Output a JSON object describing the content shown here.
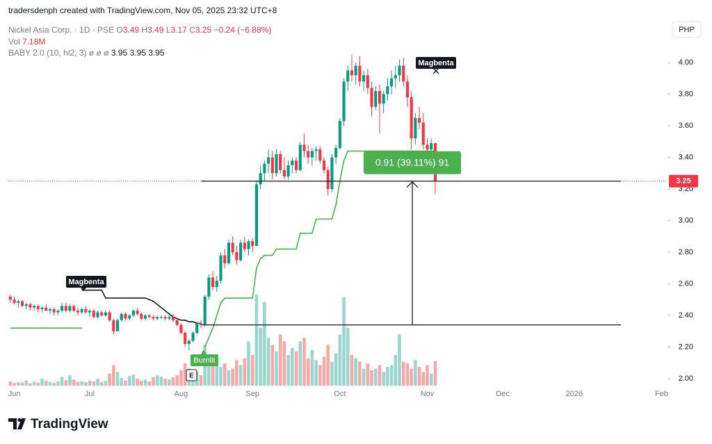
{
  "header": {
    "credit": "tradersdenph created with TradingView.com, Nov 05, 2025 23:32 UTC+8"
  },
  "legend": {
    "symbol": "Nickel Asia Corp. · 1D · PSE",
    "open_label": "O",
    "open": "3.49",
    "high_label": "H",
    "high": "3.49",
    "low_label": "L",
    "low": "3.17",
    "close_label": "C",
    "close": "3.25",
    "change": "−0.24 (−6.88%)",
    "volume_label": "Vol",
    "volume": "7.18M",
    "indicator": "BABY 2.0 (10, hl2, 3)",
    "indicator_empty": "ø ø ø",
    "indicator_values": "3.95 3.95 3.95"
  },
  "currency": "PHP",
  "footer": {
    "brand": "TradingView"
  },
  "chart_data": {
    "type": "candlestick",
    "categories": [
      null,
      "Jun",
      null,
      null,
      null,
      null,
      null,
      null,
      null,
      null,
      null,
      null,
      null,
      null,
      null,
      null,
      null,
      null,
      null,
      null,
      "Jul",
      null,
      null,
      null,
      null,
      null,
      null,
      null,
      null,
      null,
      null,
      null,
      null,
      null,
      null,
      null,
      null,
      null,
      null,
      null,
      null,
      null,
      null,
      "Aug",
      null,
      null,
      null,
      null,
      null,
      null,
      null,
      null,
      null,
      null,
      null,
      null,
      null,
      null,
      null,
      null,
      null,
      "Sep",
      null,
      null,
      null,
      null,
      null,
      null,
      null,
      null,
      null,
      null,
      null,
      null,
      null,
      null,
      null,
      null,
      null,
      null,
      null,
      null,
      null,
      "Oct",
      null,
      null,
      null,
      null,
      null,
      null,
      null,
      null,
      null,
      null,
      null,
      null,
      null,
      null,
      null,
      null,
      null,
      null,
      null,
      null,
      null,
      "Nov",
      null,
      null,
      null,
      null,
      null,
      null,
      null,
      null,
      null,
      null,
      null,
      null,
      null,
      null,
      null,
      null,
      null,
      null,
      "Dec",
      null,
      null,
      null,
      null,
      null,
      null,
      null,
      null,
      null,
      null,
      null,
      null,
      null,
      null,
      null,
      null,
      null,
      "2026",
      null,
      null,
      null,
      null,
      null,
      null,
      null,
      null,
      null,
      null,
      null,
      null,
      null,
      null,
      null,
      null,
      null,
      null,
      null,
      null,
      null,
      "Feb",
      null
    ],
    "ohlc": [
      [
        2.52,
        2.53,
        2.48,
        2.5
      ],
      [
        2.5,
        2.52,
        2.47,
        2.48
      ],
      [
        2.48,
        2.5,
        2.45,
        2.49
      ],
      [
        2.49,
        2.5,
        2.45,
        2.46
      ],
      [
        2.46,
        2.48,
        2.44,
        2.47
      ],
      [
        2.47,
        2.48,
        2.43,
        2.45
      ],
      [
        2.45,
        2.47,
        2.43,
        2.46
      ],
      [
        2.46,
        2.47,
        2.42,
        2.44
      ],
      [
        2.44,
        2.46,
        2.42,
        2.45
      ],
      [
        2.45,
        2.47,
        2.43,
        2.43
      ],
      [
        2.43,
        2.45,
        2.41,
        2.44
      ],
      [
        2.44,
        2.45,
        2.4,
        2.42
      ],
      [
        2.42,
        2.44,
        2.4,
        2.43
      ],
      [
        2.43,
        2.48,
        2.42,
        2.46
      ],
      [
        2.46,
        2.48,
        2.42,
        2.43
      ],
      [
        2.43,
        2.47,
        2.42,
        2.46
      ],
      [
        2.46,
        2.47,
        2.42,
        2.43
      ],
      [
        2.43,
        2.45,
        2.4,
        2.42
      ],
      [
        2.42,
        2.45,
        2.41,
        2.44
      ],
      [
        2.44,
        2.46,
        2.41,
        2.42
      ],
      [
        2.42,
        2.44,
        2.39,
        2.43
      ],
      [
        2.43,
        2.44,
        2.38,
        2.39
      ],
      [
        2.39,
        2.43,
        2.38,
        2.42
      ],
      [
        2.42,
        2.43,
        2.39,
        2.4
      ],
      [
        2.4,
        2.43,
        2.39,
        2.42
      ],
      [
        2.42,
        2.43,
        2.36,
        2.37
      ],
      [
        2.37,
        2.38,
        2.28,
        2.3
      ],
      [
        2.3,
        2.38,
        2.3,
        2.37
      ],
      [
        2.37,
        2.42,
        2.36,
        2.41
      ],
      [
        2.41,
        2.42,
        2.37,
        2.38
      ],
      [
        2.38,
        2.41,
        2.37,
        2.4
      ],
      [
        2.4,
        2.44,
        2.39,
        2.43
      ],
      [
        2.43,
        2.45,
        2.4,
        2.41
      ],
      [
        2.41,
        2.42,
        2.37,
        2.38
      ],
      [
        2.38,
        2.41,
        2.37,
        2.4
      ],
      [
        2.4,
        2.41,
        2.38,
        2.39
      ],
      [
        2.39,
        2.4,
        2.37,
        2.38
      ],
      [
        2.38,
        2.4,
        2.37,
        2.39
      ],
      [
        2.39,
        2.4,
        2.38,
        2.39
      ],
      [
        2.39,
        2.4,
        2.37,
        2.38
      ],
      [
        2.38,
        2.4,
        2.37,
        2.39
      ],
      [
        2.39,
        2.41,
        2.36,
        2.37
      ],
      [
        2.37,
        2.38,
        2.33,
        2.34
      ],
      [
        2.34,
        2.35,
        2.28,
        2.29
      ],
      [
        2.29,
        2.3,
        2.2,
        2.22
      ],
      [
        2.22,
        2.25,
        2.18,
        2.24
      ],
      [
        2.24,
        2.3,
        2.23,
        2.29
      ],
      [
        2.29,
        2.36,
        2.28,
        2.35
      ],
      [
        2.35,
        2.37,
        2.32,
        2.34
      ],
      [
        2.34,
        2.53,
        2.33,
        2.52
      ],
      [
        2.52,
        2.66,
        2.5,
        2.64
      ],
      [
        2.64,
        2.68,
        2.56,
        2.58
      ],
      [
        2.58,
        2.65,
        2.55,
        2.62
      ],
      [
        2.62,
        2.8,
        2.6,
        2.78
      ],
      [
        2.78,
        2.82,
        2.7,
        2.73
      ],
      [
        2.73,
        2.88,
        2.72,
        2.86
      ],
      [
        2.86,
        2.9,
        2.78,
        2.8
      ],
      [
        2.8,
        2.84,
        2.72,
        2.75
      ],
      [
        2.75,
        2.88,
        2.74,
        2.86
      ],
      [
        2.86,
        2.9,
        2.8,
        2.82
      ],
      [
        2.82,
        2.88,
        2.78,
        2.87
      ],
      [
        2.87,
        2.89,
        2.8,
        2.84
      ],
      [
        2.84,
        3.25,
        2.84,
        3.23
      ],
      [
        3.23,
        3.35,
        3.2,
        3.3
      ],
      [
        3.3,
        3.38,
        3.25,
        3.36
      ],
      [
        3.36,
        3.45,
        3.3,
        3.4
      ],
      [
        3.4,
        3.44,
        3.26,
        3.3
      ],
      [
        3.3,
        3.45,
        3.28,
        3.42
      ],
      [
        3.42,
        3.44,
        3.3,
        3.32
      ],
      [
        3.32,
        3.4,
        3.26,
        3.28
      ],
      [
        3.28,
        3.38,
        3.26,
        3.35
      ],
      [
        3.35,
        3.4,
        3.3,
        3.38
      ],
      [
        3.38,
        3.4,
        3.3,
        3.32
      ],
      [
        3.32,
        3.5,
        3.31,
        3.48
      ],
      [
        3.48,
        3.55,
        3.4,
        3.44
      ],
      [
        3.44,
        3.48,
        3.36,
        3.4
      ],
      [
        3.4,
        3.46,
        3.35,
        3.44
      ],
      [
        3.44,
        3.47,
        3.38,
        3.45
      ],
      [
        3.45,
        3.47,
        3.36,
        3.38
      ],
      [
        3.38,
        3.4,
        3.3,
        3.32
      ],
      [
        3.32,
        3.34,
        3.16,
        3.2
      ],
      [
        3.2,
        3.42,
        3.18,
        3.4
      ],
      [
        3.4,
        3.48,
        3.36,
        3.46
      ],
      [
        3.46,
        3.65,
        3.45,
        3.63
      ],
      [
        3.63,
        3.9,
        3.6,
        3.88
      ],
      [
        3.88,
        3.98,
        3.82,
        3.95
      ],
      [
        3.95,
        4.05,
        3.88,
        3.92
      ],
      [
        3.92,
        4.0,
        3.86,
        3.98
      ],
      [
        3.98,
        4.04,
        3.85,
        3.88
      ],
      [
        3.88,
        3.95,
        3.82,
        3.92
      ],
      [
        3.92,
        3.96,
        3.8,
        3.84
      ],
      [
        3.84,
        3.88,
        3.66,
        3.72
      ],
      [
        3.72,
        3.85,
        3.7,
        3.82
      ],
      [
        3.82,
        3.86,
        3.55,
        3.74
      ],
      [
        3.74,
        3.82,
        3.68,
        3.8
      ],
      [
        3.8,
        3.9,
        3.76,
        3.85
      ],
      [
        3.85,
        3.95,
        3.8,
        3.9
      ],
      [
        3.9,
        3.98,
        3.84,
        3.92
      ],
      [
        3.92,
        4.02,
        3.88,
        3.98
      ],
      [
        3.98,
        4.03,
        3.85,
        3.88
      ],
      [
        3.88,
        3.92,
        3.72,
        3.78
      ],
      [
        3.78,
        3.82,
        3.45,
        3.52
      ],
      [
        3.52,
        3.68,
        3.48,
        3.65
      ],
      [
        3.65,
        3.72,
        3.58,
        3.62
      ],
      [
        3.62,
        3.68,
        3.45,
        3.48
      ],
      [
        3.48,
        3.52,
        3.4,
        3.45
      ],
      [
        3.45,
        3.52,
        3.42,
        3.49
      ],
      [
        3.49,
        3.49,
        3.17,
        3.25
      ],
      null,
      null,
      null,
      null,
      null,
      null,
      null,
      null,
      null,
      null,
      null,
      null,
      null,
      null,
      null,
      null,
      null,
      null,
      null,
      null,
      null,
      null,
      null,
      null,
      null,
      null,
      null,
      null,
      null,
      null,
      null,
      null,
      null,
      null,
      null,
      null,
      null,
      null,
      null,
      null,
      null,
      null,
      null,
      null,
      null,
      null,
      null,
      null,
      null,
      null,
      null,
      null,
      null,
      null,
      null,
      null,
      null,
      null
    ],
    "volume": [
      1.2,
      0.8,
      1.0,
      0.9,
      1.5,
      0.7,
      1.1,
      0.9,
      2.0,
      1.4,
      1.0,
      0.8,
      1.2,
      2.5,
      1.6,
      3.0,
      1.8,
      1.1,
      1.3,
      1.0,
      1.5,
      1.2,
      2.0,
      1.0,
      1.4,
      3.5,
      6.0,
      4.0,
      2.2,
      1.5,
      2.8,
      3.2,
      2.0,
      1.4,
      1.8,
      1.2,
      2.5,
      3.0,
      2.6,
      2.0,
      1.8,
      2.4,
      3.0,
      4.5,
      6.5,
      5.0,
      3.5,
      4.0,
      3.0,
      12.0,
      8.5,
      6.0,
      7.0,
      5.5,
      6.5,
      4.5,
      5.0,
      7.5,
      6.0,
      8.0,
      13.0,
      9.0,
      26.7,
      17.0,
      24.5,
      14.0,
      12.0,
      10.0,
      15.0,
      13.0,
      9.0,
      11.0,
      10.0,
      13.0,
      14.0,
      8.0,
      10.5,
      7.5,
      6.0,
      8.5,
      12.0,
      7.0,
      9.5,
      15.0,
      26.0,
      17.0,
      9.0,
      8.0,
      7.0,
      5.0,
      6.5,
      4.5,
      5.0,
      6.0,
      4.0,
      5.5,
      6.0,
      9.0,
      15.0,
      7.0,
      6.5,
      5.0,
      7.5,
      5.5,
      4.0,
      6.0,
      3.5,
      7.18,
      null,
      null,
      null,
      null,
      null,
      null,
      null,
      null,
      null,
      null,
      null,
      null,
      null,
      null,
      null,
      null,
      null,
      null,
      null,
      null,
      null,
      null,
      null,
      null,
      null,
      null,
      null,
      null,
      null,
      null,
      null,
      null,
      null,
      null,
      null,
      null,
      null,
      null,
      null,
      null,
      null,
      null,
      null,
      null,
      null,
      null,
      null,
      null,
      null,
      null,
      null,
      null,
      null,
      null,
      null,
      null,
      null,
      null
    ],
    "up_color": "#089981",
    "down_color": "#f23645",
    "volume_up_color": "#9ad5cf",
    "volume_down_color": "#f7a9a7",
    "ylim": [
      1.956,
      4.264
    ],
    "yticks": [
      {
        "value": 2.0,
        "label": "2.00"
      },
      {
        "value": 2.2,
        "label": "2.20"
      },
      {
        "value": 2.4,
        "label": "2.40"
      },
      {
        "value": 2.6,
        "label": "2.60"
      },
      {
        "value": 2.8,
        "label": "2.80"
      },
      {
        "value": 3.0,
        "label": "3.00"
      },
      {
        "value": 3.2,
        "label": "3.20"
      },
      {
        "value": 3.4,
        "label": "3.40"
      },
      {
        "value": 3.6,
        "label": "3.60"
      },
      {
        "value": 3.8,
        "label": "3.80"
      },
      {
        "value": 4.0,
        "label": "4.00"
      }
    ],
    "y2lim": [
      0,
      107
    ],
    "last_price": {
      "value": 3.25,
      "label": "3.25"
    },
    "last_price_color": "#f23645",
    "lines": [
      {
        "color": "#4caf50",
        "values": [
          2.32,
          2.32,
          2.32,
          2.32,
          2.32,
          2.32,
          2.32,
          2.32,
          2.32,
          2.32,
          2.32,
          2.32,
          2.32,
          2.32,
          2.32,
          2.32,
          2.32,
          2.32,
          2.32,
          null,
          null,
          null,
          null,
          null,
          null,
          null,
          null,
          null,
          null,
          null,
          null,
          null,
          null,
          null,
          null,
          null,
          null,
          null,
          null,
          null,
          null,
          null,
          null,
          null,
          null,
          null,
          null,
          null,
          null,
          2.2,
          2.26,
          2.32,
          2.4,
          2.48,
          2.51,
          2.51,
          2.51,
          2.51,
          2.51,
          2.51,
          2.51,
          2.51,
          2.7,
          2.76,
          2.78,
          2.78,
          2.78,
          2.82,
          2.82,
          2.82,
          2.82,
          2.82,
          2.82,
          2.92,
          2.92,
          2.92,
          2.92,
          3.01,
          3.01,
          3.01,
          3.01,
          3.01,
          3.1,
          3.25,
          3.38,
          3.44,
          3.44,
          3.44,
          3.44,
          3.44,
          3.44,
          3.44,
          3.44,
          3.44,
          3.44,
          3.44,
          3.44,
          3.44,
          3.44,
          3.44,
          3.44,
          3.44,
          3.44,
          3.44,
          3.44,
          3.44,
          3.44,
          3.44,
          null,
          null,
          null,
          null,
          null,
          null,
          null,
          null,
          null,
          null,
          null,
          null,
          null,
          null,
          null,
          null,
          null,
          null,
          null,
          null,
          null,
          null,
          null,
          null,
          null,
          null,
          null,
          null,
          null,
          null,
          null,
          null,
          null,
          null,
          null,
          null,
          null,
          null,
          null,
          null,
          null,
          null,
          null,
          null,
          null,
          null,
          null,
          null,
          null,
          null,
          null,
          null,
          null,
          null,
          null,
          null,
          null,
          null
        ]
      },
      {
        "color": "#131722",
        "values": [
          null,
          null,
          null,
          null,
          null,
          null,
          null,
          null,
          null,
          null,
          null,
          null,
          null,
          null,
          null,
          null,
          null,
          null,
          2.56,
          2.56,
          2.56,
          2.56,
          2.56,
          2.56,
          2.51,
          2.51,
          2.51,
          2.51,
          2.51,
          2.51,
          2.51,
          2.51,
          2.51,
          2.51,
          2.51,
          2.5,
          2.49,
          2.47,
          2.45,
          2.43,
          2.41,
          2.39,
          2.38,
          2.37,
          2.37,
          2.36,
          2.36,
          2.35,
          2.35,
          null,
          null,
          null,
          null,
          null,
          null,
          null,
          null,
          null,
          null,
          null,
          null,
          null,
          null,
          null,
          null,
          null,
          null,
          null,
          null,
          null,
          null,
          null,
          null,
          null,
          null,
          null,
          null,
          null,
          null,
          null,
          null,
          null,
          null,
          null,
          null,
          null,
          null,
          null,
          null,
          null,
          null,
          null,
          null,
          null,
          null,
          null,
          null,
          null,
          null,
          null,
          null,
          null,
          null,
          null,
          null,
          null,
          null,
          null,
          null,
          null,
          null,
          null,
          null,
          null,
          null,
          null,
          null,
          null,
          null,
          null,
          null,
          null,
          null,
          null,
          null,
          null,
          null,
          null,
          null,
          null,
          null,
          null,
          null,
          null,
          null,
          null,
          null,
          null,
          null,
          null,
          null,
          null,
          null,
          null,
          null,
          null,
          null,
          null,
          null,
          null,
          null,
          null,
          null,
          null,
          null,
          null,
          null,
          null,
          null,
          null,
          null,
          null,
          null,
          null,
          null,
          null
        ]
      }
    ],
    "levels": [
      3.25,
      2.34
    ],
    "measure_label": "0.91 (39.11%) 91",
    "annotations": [
      "Magbenta",
      "Magbenta",
      "Burnlit",
      "E"
    ]
  }
}
